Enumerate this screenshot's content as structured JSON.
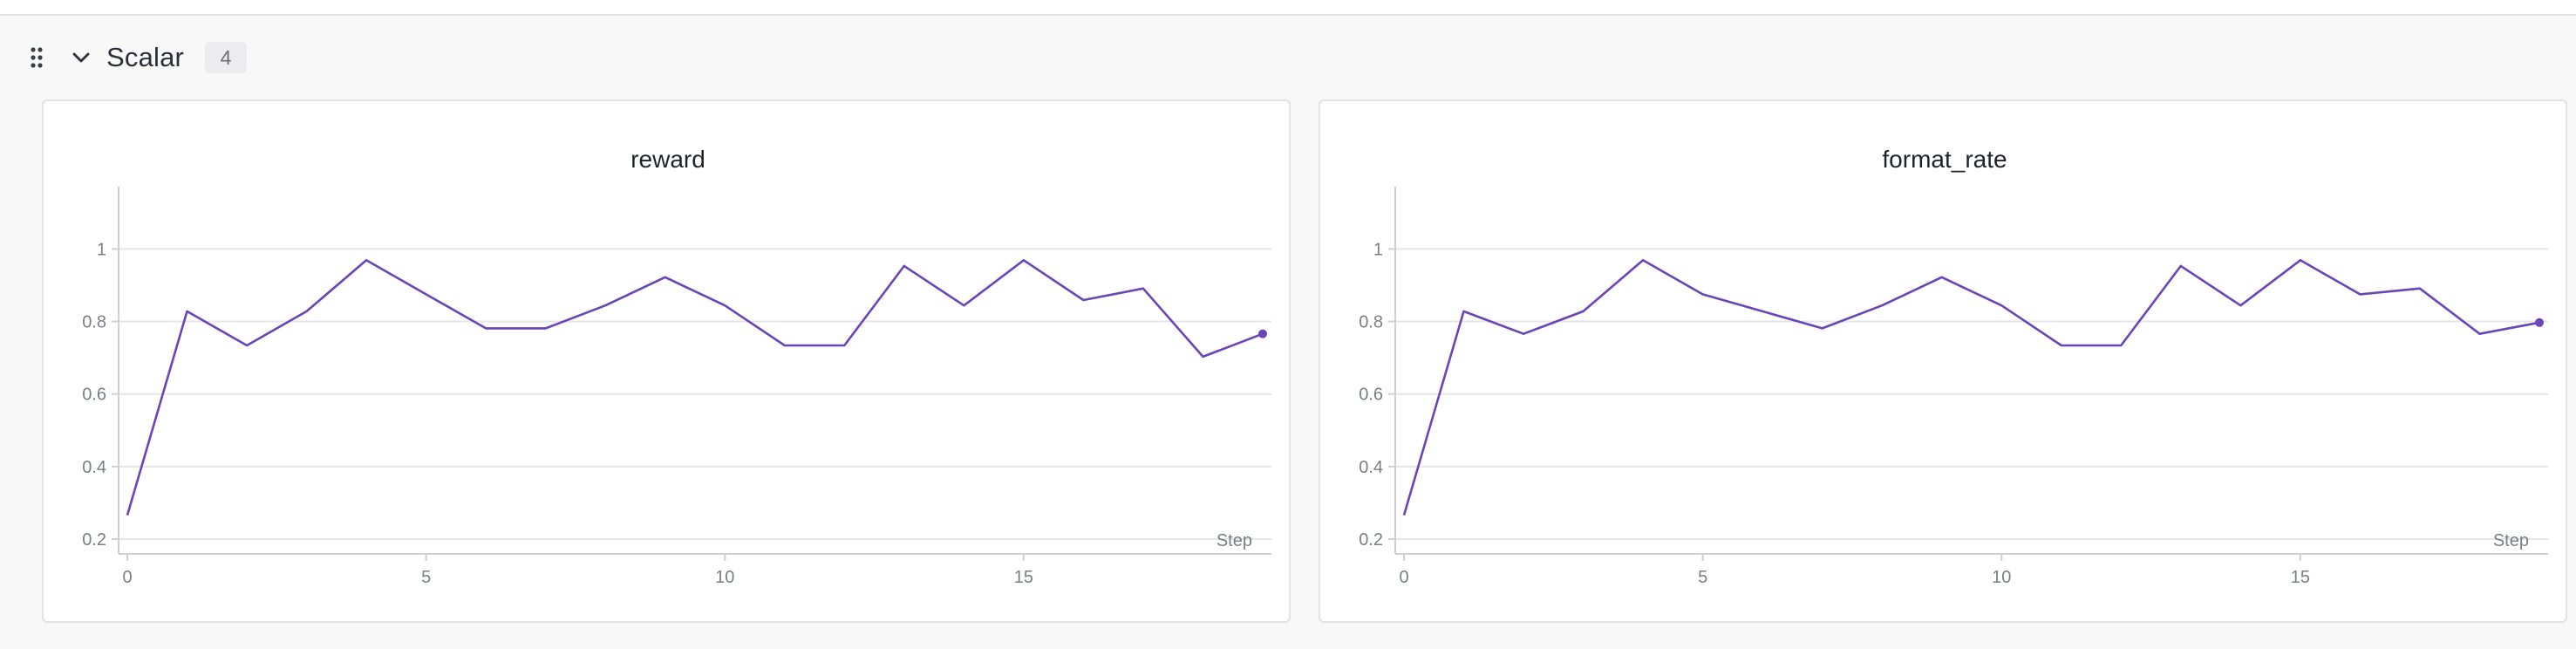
{
  "section": {
    "title": "Scalar",
    "count": "4",
    "drag_icon": "drag-handle-icon",
    "collapse_icon": "chevron-down-icon"
  },
  "colors": {
    "line": "#6a45b8",
    "grid": "#e6e6e9",
    "axis": "#cfcfd4"
  },
  "chart_data": [
    {
      "type": "line",
      "title": "reward",
      "xlabel": "Step",
      "ylabel": "",
      "xlim": [
        0,
        19
      ],
      "ylim": [
        0.2,
        1.0
      ],
      "xticks": [
        0,
        5,
        10,
        15
      ],
      "yticks": [
        0.2,
        0.4,
        0.6,
        0.8,
        1
      ],
      "grid": true,
      "series": [
        {
          "x": [
            0,
            1,
            2,
            3,
            4,
            5,
            6,
            7,
            8,
            9,
            10,
            11,
            12,
            13,
            14,
            15,
            16,
            17,
            18,
            19
          ],
          "values": [
            0.266,
            0.828,
            0.734,
            0.828,
            0.969,
            0.875,
            0.781,
            0.781,
            0.844,
            0.922,
            0.844,
            0.734,
            0.734,
            0.953,
            0.844,
            0.969,
            0.859,
            0.891,
            0.703,
            0.766
          ]
        }
      ]
    },
    {
      "type": "line",
      "title": "format_rate",
      "xlabel": "Step",
      "ylabel": "",
      "xlim": [
        0,
        19
      ],
      "ylim": [
        0.2,
        1.0
      ],
      "xticks": [
        0,
        5,
        10,
        15
      ],
      "yticks": [
        0.2,
        0.4,
        0.6,
        0.8,
        1
      ],
      "grid": true,
      "series": [
        {
          "x": [
            0,
            1,
            2,
            3,
            4,
            5,
            6,
            7,
            8,
            9,
            10,
            11,
            12,
            13,
            14,
            15,
            16,
            17,
            18,
            19
          ],
          "values": [
            0.266,
            0.828,
            0.766,
            0.828,
            0.969,
            0.875,
            0.828,
            0.781,
            0.844,
            0.922,
            0.844,
            0.734,
            0.734,
            0.953,
            0.844,
            0.969,
            0.875,
            0.891,
            0.766,
            0.797
          ]
        }
      ]
    }
  ]
}
